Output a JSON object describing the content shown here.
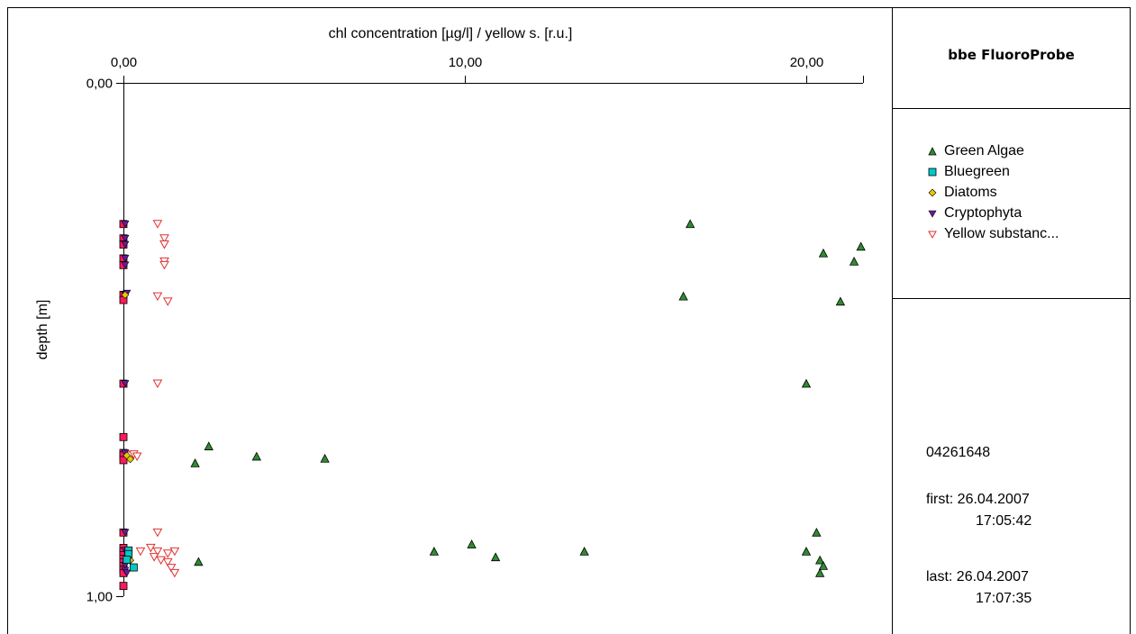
{
  "panel": {
    "title": "bbe FluoroProbe",
    "serial": "04261648",
    "first_label": "first:",
    "first_date": "26.04.2007",
    "first_time": "17:05:42",
    "last_label": "last:",
    "last_date": "26.04.2007",
    "last_time": "17:07:35"
  },
  "colors": {
    "green_algae": "#2e8b2e",
    "bluegreen": "#00c8c8",
    "diatoms": "#e6c800",
    "cryptophyta": "#6a1b9a",
    "yellow_substance": "#e03030",
    "depth_marker": "#ff1a5e"
  },
  "chart_data": {
    "type": "scatter",
    "title": "",
    "xlabel": "chl concentration [µg/l] / yellow s. [r.u.]",
    "ylabel": "depth [m]",
    "x_ticks": [
      "0,00",
      "10,00",
      "20,00"
    ],
    "x_tick_values": [
      0,
      10,
      20
    ],
    "y_ticks": [
      "0,00",
      "1,00"
    ],
    "y_tick_values": [
      0,
      1
    ],
    "xlim": [
      0,
      21.7
    ],
    "ylim": [
      0,
      1
    ],
    "y_inverted": true,
    "legend_position": "right",
    "series": [
      {
        "name": "Green Algae",
        "marker": "triangle-up",
        "color": "#2e8b2e",
        "points": [
          [
            16.6,
            0.275
          ],
          [
            20.5,
            0.332
          ],
          [
            21.6,
            0.319
          ],
          [
            21.4,
            0.348
          ],
          [
            16.4,
            0.416
          ],
          [
            21.0,
            0.426
          ],
          [
            20.0,
            0.586
          ],
          [
            2.5,
            0.708
          ],
          [
            2.1,
            0.741
          ],
          [
            3.9,
            0.728
          ],
          [
            5.9,
            0.732
          ],
          [
            20.3,
            0.876
          ],
          [
            9.1,
            0.913
          ],
          [
            10.2,
            0.899
          ],
          [
            10.9,
            0.924
          ],
          [
            13.5,
            0.913
          ],
          [
            20.0,
            0.913
          ],
          [
            20.4,
            0.93
          ],
          [
            20.5,
            0.941
          ],
          [
            20.4,
            0.955
          ],
          [
            2.2,
            0.933
          ]
        ]
      },
      {
        "name": "Bluegreen",
        "marker": "square",
        "color": "#00c8c8",
        "points": [
          [
            0.15,
            0.911
          ],
          [
            0.15,
            0.918
          ],
          [
            0.3,
            0.944
          ],
          [
            0.1,
            0.929
          ]
        ]
      },
      {
        "name": "Diatoms",
        "marker": "diamond",
        "color": "#e6c800",
        "points": [
          [
            0.05,
            0.413
          ],
          [
            0.1,
            0.726
          ],
          [
            0.2,
            0.733
          ],
          [
            0.15,
            0.92
          ],
          [
            0.2,
            0.93
          ]
        ]
      },
      {
        "name": "Cryptophyta",
        "marker": "triangle-down",
        "color": "#6a1b9a",
        "points": [
          [
            0.05,
            0.275
          ],
          [
            0.05,
            0.303
          ],
          [
            0.05,
            0.315
          ],
          [
            0.05,
            0.342
          ],
          [
            0.05,
            0.355
          ],
          [
            0.05,
            0.413
          ],
          [
            0.1,
            0.41
          ],
          [
            0.05,
            0.586
          ],
          [
            0.05,
            0.721
          ],
          [
            0.05,
            0.876
          ],
          [
            0.05,
            0.911
          ],
          [
            0.05,
            0.94
          ],
          [
            0.05,
            0.95
          ],
          [
            0.1,
            0.955
          ]
        ]
      },
      {
        "name": "Yellow substanc...",
        "marker": "triangle-down-open",
        "color": "#e03030",
        "points": [
          [
            1.0,
            0.275
          ],
          [
            1.2,
            0.303
          ],
          [
            1.2,
            0.315
          ],
          [
            1.2,
            0.348
          ],
          [
            1.2,
            0.355
          ],
          [
            1.0,
            0.416
          ],
          [
            1.3,
            0.426
          ],
          [
            1.0,
            0.586
          ],
          [
            0.2,
            0.726
          ],
          [
            0.3,
            0.724
          ],
          [
            0.4,
            0.728
          ],
          [
            1.0,
            0.876
          ],
          [
            0.8,
            0.906
          ],
          [
            1.0,
            0.913
          ],
          [
            0.9,
            0.924
          ],
          [
            0.5,
            0.913
          ],
          [
            1.3,
            0.917
          ],
          [
            1.5,
            0.913
          ],
          [
            1.3,
            0.934
          ],
          [
            1.4,
            0.945
          ],
          [
            1.5,
            0.955
          ],
          [
            1.1,
            0.93
          ]
        ]
      },
      {
        "name": "",
        "marker": "square",
        "color": "#ff1a5e",
        "points": [
          [
            0,
            0.275
          ],
          [
            0,
            0.303
          ],
          [
            0,
            0.315
          ],
          [
            0,
            0.342
          ],
          [
            0,
            0.355
          ],
          [
            0,
            0.413
          ],
          [
            0,
            0.423
          ],
          [
            0,
            0.586
          ],
          [
            0,
            0.69
          ],
          [
            0,
            0.721
          ],
          [
            0,
            0.726
          ],
          [
            0,
            0.735
          ],
          [
            0,
            0.876
          ],
          [
            0,
            0.906
          ],
          [
            0,
            0.913
          ],
          [
            0,
            0.92
          ],
          [
            0,
            0.927
          ],
          [
            0,
            0.934
          ],
          [
            0,
            0.941
          ],
          [
            0,
            0.948
          ],
          [
            0,
            0.955
          ],
          [
            0,
            0.98
          ]
        ]
      }
    ]
  }
}
